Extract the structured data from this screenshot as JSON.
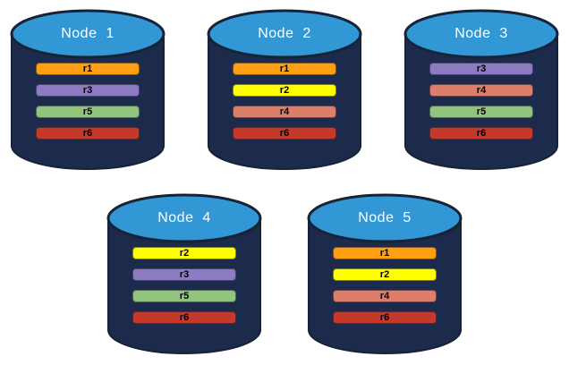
{
  "nodes": [
    {
      "name": "Node  1",
      "replicas": [
        "r1",
        "r3",
        "r5",
        "r6"
      ]
    },
    {
      "name": "Node  2",
      "replicas": [
        "r1",
        "r2",
        "r4",
        "r6"
      ]
    },
    {
      "name": "Node  3",
      "replicas": [
        "r3",
        "r4",
        "r5",
        "r6"
      ]
    },
    {
      "name": "Node  4",
      "replicas": [
        "r2",
        "r3",
        "r5",
        "r6"
      ]
    },
    {
      "name": "Node  5",
      "replicas": [
        "r1",
        "r2",
        "r4",
        "r6"
      ]
    }
  ],
  "rows": [
    [
      0,
      1,
      2
    ],
    [
      3,
      4
    ]
  ],
  "colors": {
    "cylinder_body": "#1C2B4C",
    "cylinder_top": "#3298D5",
    "cylinder_outline": "#152238",
    "node_label_text": "#FFFFFF",
    "replica_text": "#000000",
    "replicas": {
      "r1": "#FFA013",
      "r2": "#FFFF00",
      "r3": "#8E7CC3",
      "r4": "#DD7E6B",
      "r5": "#93C47D",
      "r6": "#C5392B"
    }
  }
}
